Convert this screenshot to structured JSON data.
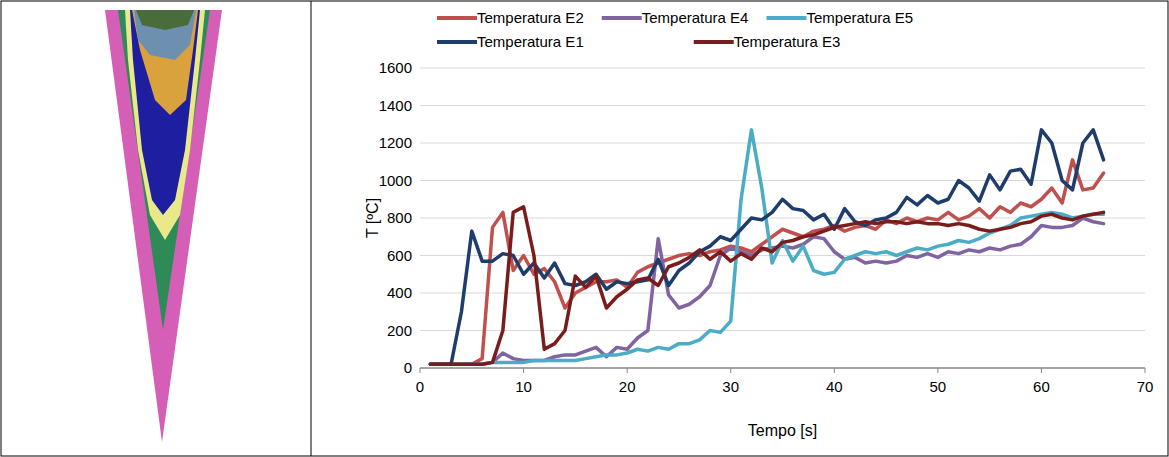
{
  "chart_data": {
    "type": "line",
    "x_label": "Tempo [s]",
    "y_label": "T [ºC]",
    "x": [
      1,
      2,
      3,
      4,
      5,
      6,
      7,
      8,
      9,
      10,
      11,
      12,
      13,
      14,
      15,
      16,
      17,
      18,
      19,
      20,
      21,
      22,
      23,
      24,
      25,
      26,
      27,
      28,
      29,
      30,
      31,
      32,
      33,
      34,
      35,
      36,
      37,
      38,
      39,
      40,
      41,
      42,
      43,
      44,
      45,
      46,
      47,
      48,
      49,
      50,
      51,
      52,
      53,
      54,
      55,
      56,
      57,
      58,
      59,
      60,
      61,
      62,
      63,
      64,
      65,
      66
    ],
    "xlim": [
      0,
      70
    ],
    "xticks": [
      0,
      10,
      20,
      30,
      40,
      50,
      60,
      70
    ],
    "ylim": [
      0,
      1600
    ],
    "yticks": [
      0,
      200,
      400,
      600,
      800,
      1000,
      1200,
      1400,
      1600
    ],
    "grid": true,
    "legend": "top",
    "series": [
      {
        "name": "Temperatura E2",
        "color": "#c0504d",
        "values": [
          20,
          20,
          20,
          20,
          20,
          50,
          750,
          830,
          520,
          600,
          500,
          530,
          460,
          320,
          400,
          430,
          460,
          460,
          470,
          430,
          510,
          540,
          560,
          580,
          600,
          610,
          600,
          620,
          630,
          650,
          640,
          620,
          660,
          700,
          740,
          720,
          700,
          730,
          740,
          760,
          730,
          750,
          760,
          740,
          790,
          770,
          800,
          780,
          800,
          790,
          830,
          790,
          810,
          850,
          800,
          860,
          830,
          880,
          860,
          900,
          960,
          880,
          1110,
          950,
          960,
          1040
        ]
      },
      {
        "name": "Temperatura E4",
        "color": "#8064a2",
        "values": [
          20,
          20,
          20,
          20,
          20,
          20,
          30,
          80,
          50,
          40,
          40,
          40,
          60,
          70,
          70,
          90,
          110,
          60,
          110,
          100,
          160,
          200,
          690,
          390,
          320,
          340,
          380,
          440,
          600,
          640,
          620,
          600,
          630,
          640,
          650,
          640,
          660,
          700,
          690,
          620,
          580,
          590,
          560,
          570,
          560,
          570,
          600,
          590,
          610,
          590,
          620,
          610,
          630,
          620,
          640,
          630,
          650,
          660,
          700,
          760,
          750,
          750,
          760,
          800,
          780,
          770
        ]
      },
      {
        "name": "Temperatura E5",
        "color": "#4bacc6",
        "values": [
          20,
          20,
          20,
          20,
          20,
          20,
          30,
          30,
          30,
          30,
          40,
          40,
          40,
          40,
          40,
          50,
          60,
          70,
          70,
          80,
          100,
          90,
          110,
          100,
          130,
          130,
          150,
          200,
          190,
          250,
          900,
          1270,
          960,
          560,
          680,
          570,
          650,
          520,
          500,
          510,
          580,
          600,
          620,
          610,
          620,
          600,
          620,
          640,
          630,
          650,
          660,
          680,
          670,
          690,
          720,
          740,
          760,
          800,
          810,
          820,
          830,
          820,
          800,
          810,
          820,
          820
        ]
      },
      {
        "name": "Temperatura E1",
        "color": "#1f3d6b",
        "values": [
          20,
          20,
          20,
          300,
          730,
          570,
          570,
          610,
          600,
          500,
          560,
          480,
          560,
          450,
          440,
          460,
          500,
          420,
          460,
          450,
          460,
          470,
          580,
          440,
          520,
          560,
          620,
          650,
          700,
          680,
          740,
          800,
          790,
          830,
          900,
          850,
          840,
          790,
          820,
          740,
          850,
          780,
          760,
          790,
          800,
          830,
          910,
          870,
          920,
          880,
          900,
          1000,
          960,
          890,
          1030,
          950,
          1050,
          1060,
          980,
          1270,
          1200,
          1000,
          950,
          1200,
          1270,
          1110
        ]
      },
      {
        "name": "Temperatura E3",
        "color": "#7b1c1c",
        "values": [
          20,
          20,
          20,
          20,
          20,
          20,
          30,
          200,
          830,
          860,
          600,
          100,
          130,
          200,
          490,
          430,
          490,
          320,
          380,
          420,
          470,
          480,
          440,
          540,
          560,
          590,
          630,
          580,
          620,
          570,
          610,
          580,
          640,
          620,
          670,
          680,
          700,
          710,
          730,
          750,
          760,
          770,
          780,
          770,
          780,
          780,
          770,
          780,
          770,
          770,
          760,
          770,
          760,
          740,
          730,
          740,
          750,
          770,
          780,
          810,
          820,
          800,
          790,
          810,
          820,
          830
        ]
      }
    ]
  }
}
